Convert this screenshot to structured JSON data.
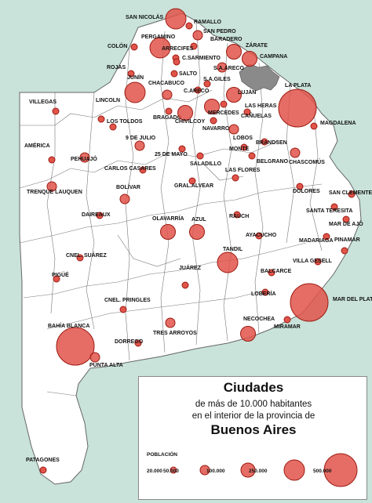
{
  "colors": {
    "sea": "#c9e3da",
    "land": "#ffffff",
    "metro": "#8a8a8a",
    "bubble_fill": "#e0544a",
    "bubble_stroke": "#9c1b12",
    "dot_fill": "#d9392c"
  },
  "legend": {
    "title": "Ciudades",
    "line2": "de más de 10.000 habitantes",
    "line3": "en el interior de la provincia de",
    "line4": "Buenos Aires",
    "poblacion_label": "POBLACIÓN",
    "sizes": [
      {
        "label": "20.000",
        "value": 20000
      },
      {
        "label": "50.000",
        "value": 50000
      },
      {
        "label": "100.000",
        "value": 100000
      },
      {
        "label": "250.000",
        "value": 250000
      },
      {
        "label": "500.000",
        "value": 500000
      }
    ]
  },
  "cities": [
    {
      "name": "SAN NICOLÁS",
      "size": "l"
    },
    {
      "name": "RAMALLO",
      "size": "d"
    },
    {
      "name": "SAN PEDRO",
      "size": "s"
    },
    {
      "name": "PERGAMINO",
      "size": "l"
    },
    {
      "name": "BARADERO",
      "size": "d"
    },
    {
      "name": "COLÓN",
      "size": "d"
    },
    {
      "name": "ARRECIFES",
      "size": "d"
    },
    {
      "name": "ZÁRATE",
      "size": "m"
    },
    {
      "name": "C.SARMIENTO",
      "size": "d"
    },
    {
      "name": "CAMPANA",
      "size": "m"
    },
    {
      "name": "ROJAS",
      "size": "d"
    },
    {
      "name": "S.A.ARECO",
      "size": "s"
    },
    {
      "name": "SALTO",
      "size": "d"
    },
    {
      "name": "S.A.GILES",
      "size": "d"
    },
    {
      "name": "JUNÍN",
      "size": "l"
    },
    {
      "name": "CHACABUCO",
      "size": "s"
    },
    {
      "name": "C.ARECO",
      "size": "d"
    },
    {
      "name": "LUJÁN",
      "size": "m"
    },
    {
      "name": "LA PLATA",
      "size": "xl"
    },
    {
      "name": "LAS HERAS",
      "size": "d"
    },
    {
      "name": "LINCOLN",
      "size": "d"
    },
    {
      "name": "MERCEDES",
      "size": "m"
    },
    {
      "name": "CAÑUELAS",
      "size": "d"
    },
    {
      "name": "MAGDALENA",
      "size": "d"
    },
    {
      "name": "LOS TOLDOS",
      "size": "d"
    },
    {
      "name": "BRAGADO",
      "size": "d"
    },
    {
      "name": "CHIVILCOY",
      "size": "m"
    },
    {
      "name": "NAVARRO",
      "size": "d"
    },
    {
      "name": "9 DE JULIO",
      "size": "s"
    },
    {
      "name": "LOBOS",
      "size": "s"
    },
    {
      "name": "BRANDSEN",
      "size": "d"
    },
    {
      "name": "VILLEGAS",
      "size": "d"
    },
    {
      "name": "MONTE",
      "size": "d"
    },
    {
      "name": "AMÉRICA",
      "size": "d"
    },
    {
      "name": "25 DE MAYO",
      "size": "d"
    },
    {
      "name": "SALADILLO",
      "size": "d"
    },
    {
      "name": "BELGRANO",
      "size": "d"
    },
    {
      "name": "CHASCOMÚS",
      "size": "s"
    },
    {
      "name": "PEHUAJÓ",
      "size": "s"
    },
    {
      "name": "CARLOS CASARES",
      "size": "d"
    },
    {
      "name": "LAS FLORES",
      "size": "d"
    },
    {
      "name": "TRENQUE LAUQUEN",
      "size": "s"
    },
    {
      "name": "BOLÍVAR",
      "size": "s"
    },
    {
      "name": "GRAL.ALVEAR",
      "size": "d"
    },
    {
      "name": "DOLORES",
      "size": "d"
    },
    {
      "name": "SAN CLEMENTE",
      "size": "d"
    },
    {
      "name": "SANTA TERESITA",
      "size": "d"
    },
    {
      "name": "DAIREAUX",
      "size": "d"
    },
    {
      "name": "RAUCH",
      "size": "d"
    },
    {
      "name": "MAR DE AJÓ",
      "size": "d"
    },
    {
      "name": "OLAVARRÍA",
      "size": "m"
    },
    {
      "name": "AZUL",
      "size": "m"
    },
    {
      "name": "AYACUCHO",
      "size": "d"
    },
    {
      "name": "PINAMAR",
      "size": "d"
    },
    {
      "name": "MADARIAGA",
      "size": "d"
    },
    {
      "name": "CNEL. SUÁREZ",
      "size": "d"
    },
    {
      "name": "TANDIL",
      "size": "l"
    },
    {
      "name": "VILLA GESELL",
      "size": "d"
    },
    {
      "name": "BALCARCE",
      "size": "d"
    },
    {
      "name": "PIGÜÉ",
      "size": "d"
    },
    {
      "name": "JUÁREZ",
      "size": "d"
    },
    {
      "name": "LOBERÍA",
      "size": "d"
    },
    {
      "name": "MAR DEL PLATA",
      "size": "xl"
    },
    {
      "name": "CNEL. PRINGLES",
      "size": "d"
    },
    {
      "name": "NECOCHEA",
      "size": "m"
    },
    {
      "name": "MIRAMAR",
      "size": "d"
    },
    {
      "name": "BAHÍA BLANCA",
      "size": "xl"
    },
    {
      "name": "TRES ARROYOS",
      "size": "s"
    },
    {
      "name": "DORREGO",
      "size": "d"
    },
    {
      "name": "PUNTA ALTA",
      "size": "s"
    },
    {
      "name": "PATAGONES",
      "size": "d"
    }
  ]
}
